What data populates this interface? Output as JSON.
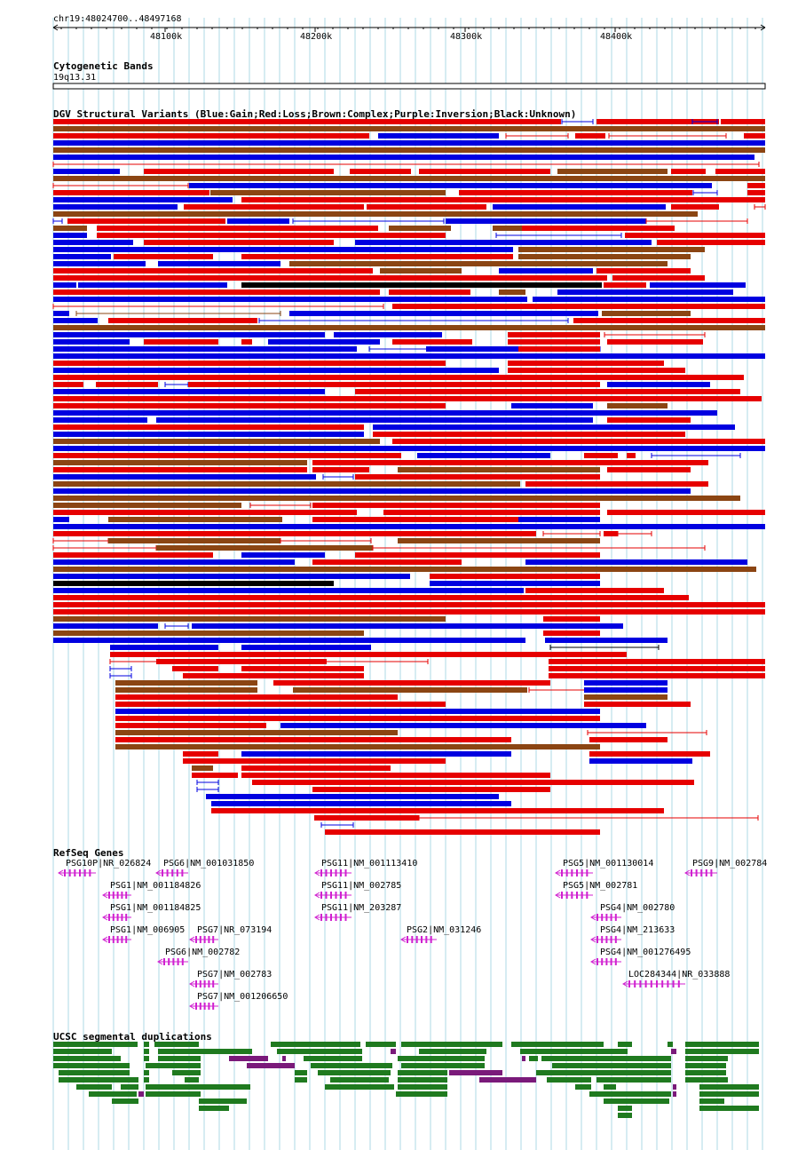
{
  "colors": {
    "gain": "#0000e0",
    "loss": "#e60000",
    "complex": "#8b4513",
    "inversion": "#800080",
    "unknown": "#000000",
    "gene": "#d020d0",
    "segdup_green": "#1f7a1f",
    "segdup_purple": "#7a1a7a",
    "gridline": "#add8e6"
  },
  "ruler": {
    "position_label": "chr19:48024700..48497168",
    "ticks": [
      "48100k",
      "48200k",
      "48300k",
      "48400k"
    ]
  },
  "cytoband": {
    "title": "Cytogenetic Bands",
    "band": "19q13.31"
  },
  "dgv": {
    "title": "DGV Structural Variants (Blue:Gain;Red:Loss;Brown:Complex;Purple:Inversion;Black:Unknown)",
    "legend_colors": {
      "Gain": "blue",
      "Loss": "red",
      "Complex": "brown",
      "Inversion": "purple",
      "Unknown": "black"
    }
  },
  "refseq": {
    "title": "RefSeq Genes",
    "genes": [
      "PSG10P|NR_026824",
      "PSG6|NM_001031850",
      "PSG11|NM_001113410",
      "PSG5|NM_001130014",
      "PSG9|NM_002784",
      "PSG1|NM_001184826",
      "PSG11|NM_002785",
      "PSG5|NM_002781",
      "PSG1|NM_001184825",
      "PSG11|NM_203287",
      "PSG4|NM_002780",
      "PSG1|NM_006905",
      "PSG7|NR_073194",
      "PSG2|NM_031246",
      "PSG4|NM_213633",
      "PSG6|NM_002782",
      "PSG4|NM_001276495",
      "PSG7|NM_002783",
      "LOC284344|NR_033888",
      "PSG7|NM_001206650"
    ]
  },
  "segdup": {
    "title": "UCSC segmental duplications"
  }
}
